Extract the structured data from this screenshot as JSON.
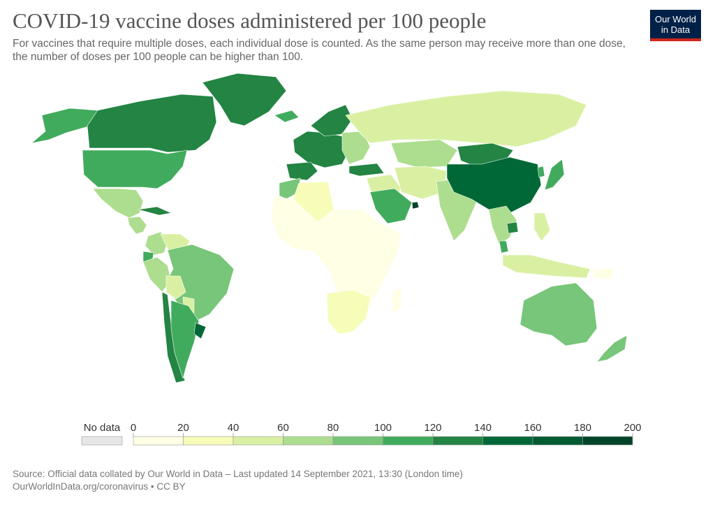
{
  "header": {
    "title": "COVID-19 vaccine doses administered per 100 people",
    "subtitle": "For vaccines that require multiple doses, each individual dose is counted. As the same person may receive more than one dose, the number of doses per 100 people can be higher than 100.",
    "logo_line1": "Our World",
    "logo_line2": "in Data"
  },
  "legend": {
    "no_data_label": "No data",
    "no_data_color": "#e6e6e6",
    "ticks": [
      "0",
      "20",
      "40",
      "60",
      "80",
      "100",
      "120",
      "140",
      "160",
      "180",
      "200"
    ],
    "colors": [
      "#ffffe5",
      "#f7fcb9",
      "#d9f0a3",
      "#addd8e",
      "#78c679",
      "#41ab5d",
      "#238443",
      "#006837",
      "#005a32",
      "#004529"
    ]
  },
  "regions": [
    {
      "name": "Alaska",
      "bin": 5
    },
    {
      "name": "Canada",
      "bin": 6
    },
    {
      "name": "Greenland",
      "bin": 6
    },
    {
      "name": "United States",
      "bin": 5
    },
    {
      "name": "Mexico",
      "bin": 3
    },
    {
      "name": "Central America",
      "bin": 3
    },
    {
      "name": "Cuba",
      "bin": 6
    },
    {
      "name": "Colombia",
      "bin": 3
    },
    {
      "name": "Venezuela",
      "bin": 2
    },
    {
      "name": "Ecuador",
      "bin": 5
    },
    {
      "name": "Peru",
      "bin": 3
    },
    {
      "name": "Brazil",
      "bin": 4
    },
    {
      "name": "Bolivia",
      "bin": 2
    },
    {
      "name": "Paraguay",
      "bin": 2
    },
    {
      "name": "Chile",
      "bin": 6
    },
    {
      "name": "Argentina",
      "bin": 5
    },
    {
      "name": "Uruguay",
      "bin": 7
    },
    {
      "name": "Iceland",
      "bin": 5
    },
    {
      "name": "Western Europe",
      "bin": 6
    },
    {
      "name": "Spain / Portugal",
      "bin": 6
    },
    {
      "name": "Scandinavia",
      "bin": 6
    },
    {
      "name": "Eastern Europe",
      "bin": 3
    },
    {
      "name": "Russia",
      "bin": 2
    },
    {
      "name": "Turkey",
      "bin": 6
    },
    {
      "name": "Kazakhstan",
      "bin": 3
    },
    {
      "name": "Middle East",
      "bin": 2
    },
    {
      "name": "Saudi Arabia",
      "bin": 5
    },
    {
      "name": "UAE",
      "bin": 9
    },
    {
      "name": "Iran / Central Asia",
      "bin": 2
    },
    {
      "name": "India",
      "bin": 3
    },
    {
      "name": "Mongolia",
      "bin": 6
    },
    {
      "name": "China",
      "bin": 7
    },
    {
      "name": "Japan",
      "bin": 5
    },
    {
      "name": "Korea",
      "bin": 5
    },
    {
      "name": "Southeast Asia",
      "bin": 3
    },
    {
      "name": "Cambodia",
      "bin": 6
    },
    {
      "name": "Malaysia",
      "bin": 5
    },
    {
      "name": "Indonesia",
      "bin": 2
    },
    {
      "name": "Philippines",
      "bin": 2
    },
    {
      "name": "Morocco",
      "bin": 4
    },
    {
      "name": "Algeria",
      "bin": 1
    },
    {
      "name": "Sub-Saharan Africa",
      "bin": 0
    },
    {
      "name": "Southern Africa",
      "bin": 1
    },
    {
      "name": "Madagascar",
      "bin": 0
    },
    {
      "name": "Australia",
      "bin": 4
    },
    {
      "name": "New Zealand",
      "bin": 4
    },
    {
      "name": "Papua New Guinea",
      "bin": 0
    }
  ],
  "footer": {
    "source": "Source: Official data collated by Our World in Data – Last updated 14 September 2021, 13:30 (London time)",
    "link": "OurWorldInData.org/coronavirus",
    "license": "• CC BY"
  }
}
